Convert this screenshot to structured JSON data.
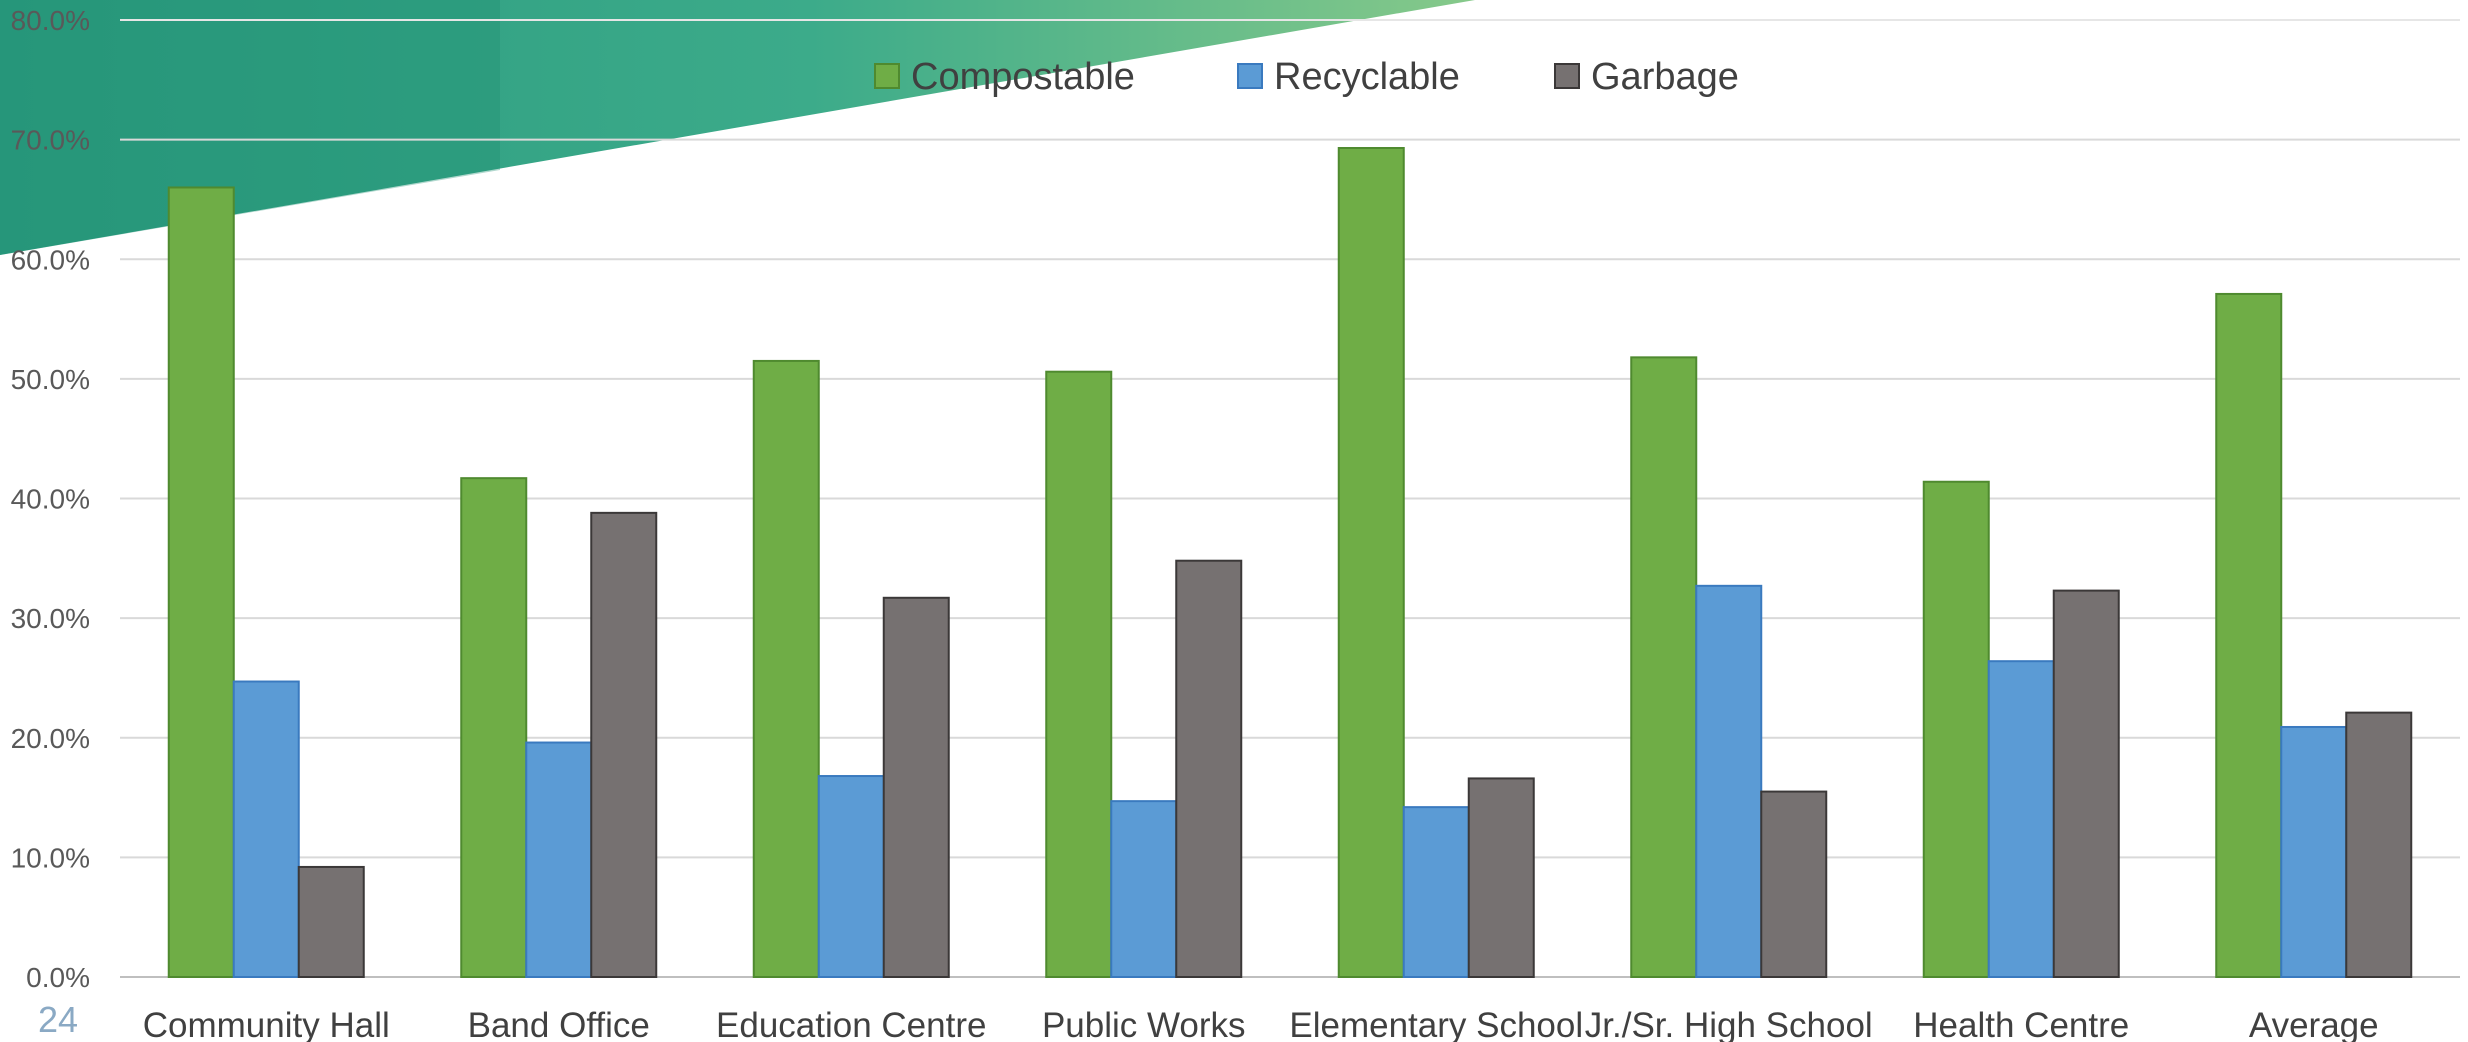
{
  "slide": {
    "page_number": "24",
    "accent_colors": [
      "#2a9a7e",
      "#3cab8a",
      "#86c98a"
    ]
  },
  "chart_data": {
    "type": "bar",
    "title": "",
    "xlabel": "",
    "ylabel": "",
    "ylim": [
      0,
      80
    ],
    "y_tick_step": 10,
    "y_tick_labels": [
      "0.0%",
      "10.0%",
      "20.0%",
      "30.0%",
      "40.0%",
      "50.0%",
      "60.0%",
      "70.0%",
      "80.0%"
    ],
    "grid": true,
    "legend_position": "top-center",
    "categories": [
      "Community Hall",
      "Band Office",
      "Education Centre",
      "Public Works",
      "Elementary School",
      "Jr./Sr. High School",
      "Health Centre",
      "Average"
    ],
    "series": [
      {
        "name": "Compostable",
        "color": "#6fad46",
        "values": [
          66.0,
          41.7,
          51.5,
          50.6,
          69.3,
          51.8,
          41.4,
          57.1
        ]
      },
      {
        "name": "Recyclable",
        "color": "#5b9bd5",
        "values": [
          24.7,
          19.6,
          16.8,
          14.7,
          14.2,
          32.7,
          26.4,
          20.9
        ]
      },
      {
        "name": "Garbage",
        "color": "#767171",
        "values": [
          9.2,
          38.8,
          31.7,
          34.8,
          16.6,
          15.5,
          32.3,
          22.1
        ]
      }
    ]
  }
}
